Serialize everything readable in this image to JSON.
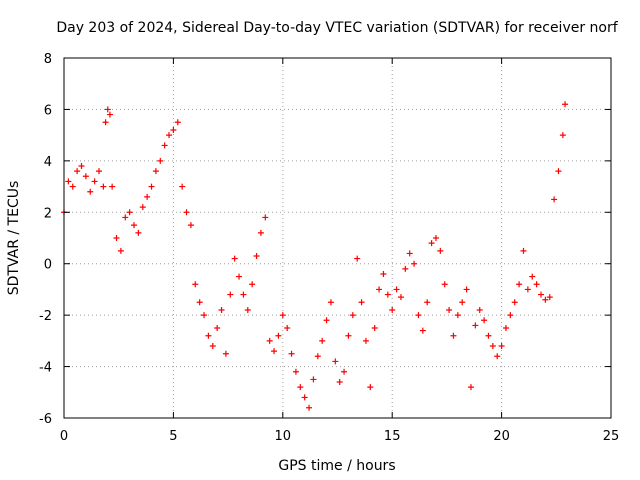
{
  "chart_data": {
    "type": "scatter",
    "title": "Day 203 of 2024, Sidereal Day-to-day VTEC variation (SDTVAR) for receiver norf",
    "xlabel": "GPS time / hours",
    "ylabel": "SDTVAR / TECUs",
    "xlim": [
      0,
      25
    ],
    "ylim": [
      -6,
      8
    ],
    "xticks": [
      0,
      5,
      10,
      15,
      20,
      25
    ],
    "yticks": [
      -6,
      -4,
      -2,
      0,
      2,
      4,
      6,
      8
    ],
    "grid": true,
    "marker": "+",
    "series_color": "#ff0000",
    "series": [
      {
        "name": "SDTVAR",
        "x": [
          0.0,
          0.2,
          0.4,
          0.6,
          0.8,
          1.0,
          1.2,
          1.4,
          1.6,
          1.8,
          1.9,
          2.0,
          2.1,
          2.2,
          2.4,
          2.6,
          2.8,
          3.0,
          3.2,
          3.4,
          3.6,
          3.8,
          4.0,
          4.2,
          4.4,
          4.6,
          4.8,
          5.0,
          5.2,
          5.4,
          5.6,
          5.8,
          6.0,
          6.2,
          6.4,
          6.6,
          6.8,
          7.0,
          7.2,
          7.4,
          7.6,
          7.8,
          8.0,
          8.2,
          8.4,
          8.6,
          8.8,
          9.0,
          9.2,
          9.4,
          9.6,
          9.8,
          10.0,
          10.2,
          10.4,
          10.6,
          10.8,
          11.0,
          11.2,
          11.4,
          11.6,
          11.8,
          12.0,
          12.2,
          12.4,
          12.6,
          12.8,
          13.0,
          13.2,
          13.4,
          13.6,
          13.8,
          14.0,
          14.2,
          14.4,
          14.6,
          14.8,
          15.0,
          15.2,
          15.4,
          15.6,
          15.8,
          16.0,
          16.2,
          16.4,
          16.6,
          16.8,
          17.0,
          17.2,
          17.4,
          17.6,
          17.8,
          18.0,
          18.2,
          18.4,
          18.6,
          18.8,
          19.0,
          19.2,
          19.4,
          19.6,
          19.8,
          20.0,
          20.2,
          20.4,
          20.6,
          20.8,
          21.0,
          21.2,
          21.4,
          21.6,
          21.8,
          22.0,
          22.2,
          22.4,
          22.6,
          22.8,
          22.9
        ],
        "y": [
          2.0,
          3.2,
          3.0,
          3.6,
          3.8,
          3.4,
          2.8,
          3.2,
          3.6,
          3.0,
          5.5,
          6.0,
          5.8,
          3.0,
          1.0,
          0.5,
          1.8,
          2.0,
          1.5,
          1.2,
          2.2,
          2.6,
          3.0,
          3.6,
          4.0,
          4.6,
          5.0,
          5.2,
          5.5,
          3.0,
          2.0,
          1.5,
          -0.8,
          -1.5,
          -2.0,
          -2.8,
          -3.2,
          -2.5,
          -1.8,
          -3.5,
          -1.2,
          0.2,
          -0.5,
          -1.2,
          -1.8,
          -0.8,
          0.3,
          1.2,
          1.8,
          -3.0,
          -3.4,
          -2.8,
          -2.0,
          -2.5,
          -3.5,
          -4.2,
          -4.8,
          -5.2,
          -5.6,
          -4.5,
          -3.6,
          -3.0,
          -2.2,
          -1.5,
          -3.8,
          -4.6,
          -4.2,
          -2.8,
          -2.0,
          0.2,
          -1.5,
          -3.0,
          -4.8,
          -2.5,
          -1.0,
          -0.4,
          -1.2,
          -1.8,
          -1.0,
          -1.3,
          -0.2,
          0.4,
          0.0,
          -2.0,
          -2.6,
          -1.5,
          0.8,
          1.0,
          0.5,
          -0.8,
          -1.8,
          -2.8,
          -2.0,
          -1.5,
          -1.0,
          -4.8,
          -2.4,
          -1.8,
          -2.2,
          -2.8,
          -3.2,
          -3.6,
          -3.2,
          -2.5,
          -2.0,
          -1.5,
          -0.8,
          0.5,
          -1.0,
          -0.5,
          -0.8,
          -1.2,
          -1.4,
          -1.3,
          2.5,
          3.6,
          5.0,
          6.2
        ]
      }
    ]
  }
}
